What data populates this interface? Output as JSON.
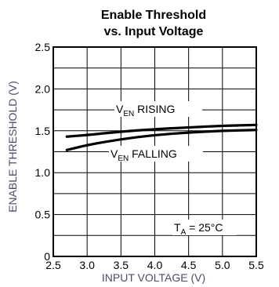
{
  "chart_data": {
    "type": "line",
    "title_line1": "Enable Threshold",
    "title_line2": "vs. Input Voltage",
    "xlabel": "INPUT VOLTAGE (V)",
    "ylabel": "ENABLE THRESHOLD (V)",
    "xlim": [
      2.5,
      5.5
    ],
    "ylim": [
      0,
      2.5
    ],
    "x_ticks": [
      "2.5",
      "3.0",
      "3.5",
      "4.0",
      "4.5",
      "5.0",
      "5.5"
    ],
    "y_ticks": [
      "0",
      "0.5",
      "1.0",
      "1.5",
      "2.0",
      "2.5"
    ],
    "grid": true,
    "series": [
      {
        "name_main": "V",
        "name_sub": "EN",
        "name_suffix": " RISING",
        "x": [
          2.7,
          3.0,
          3.5,
          4.0,
          4.5,
          5.0,
          5.5
        ],
        "y": [
          1.43,
          1.45,
          1.49,
          1.52,
          1.54,
          1.56,
          1.57
        ]
      },
      {
        "name_main": "V",
        "name_sub": "EN",
        "name_suffix": " FALLING",
        "x": [
          2.7,
          3.0,
          3.5,
          4.0,
          4.5,
          5.0,
          5.5
        ],
        "y": [
          1.27,
          1.33,
          1.4,
          1.45,
          1.48,
          1.5,
          1.51
        ]
      }
    ],
    "condition": {
      "main": "T",
      "sub": "A",
      "suffix": " = 25°C"
    }
  }
}
